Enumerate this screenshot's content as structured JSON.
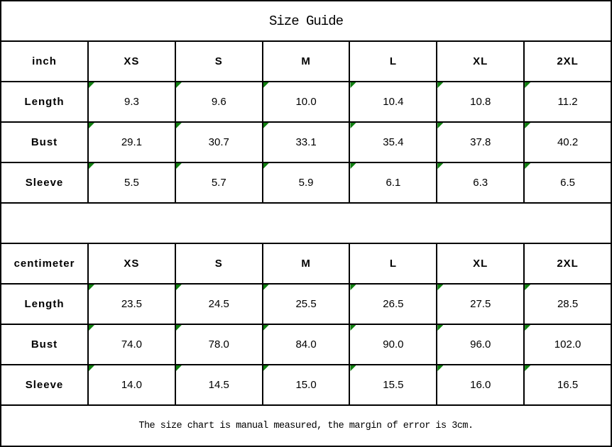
{
  "title": "Size Guide",
  "footer_note": "The size chart is manual measured, the margin of error is 3cm.",
  "colors": {
    "border": "#000000",
    "text": "#000000",
    "background": "#ffffff",
    "flag_green": "#108010"
  },
  "size_tables": [
    {
      "unit_label": "inch",
      "size_headers": [
        "XS",
        "S",
        "M",
        "L",
        "XL",
        "2XL"
      ],
      "rows": [
        {
          "label": "Length",
          "values": [
            "9.3",
            "9.6",
            "10.0",
            "10.4",
            "10.8",
            "11.2"
          ]
        },
        {
          "label": "Bust",
          "values": [
            "29.1",
            "30.7",
            "33.1",
            "35.4",
            "37.8",
            "40.2"
          ]
        },
        {
          "label": "Sleeve",
          "values": [
            "5.5",
            "5.7",
            "5.9",
            "6.1",
            "6.3",
            "6.5"
          ]
        }
      ]
    },
    {
      "unit_label": "centimeter",
      "size_headers": [
        "XS",
        "S",
        "M",
        "L",
        "XL",
        "2XL"
      ],
      "rows": [
        {
          "label": "Length",
          "values": [
            "23.5",
            "24.5",
            "25.5",
            "26.5",
            "27.5",
            "28.5"
          ]
        },
        {
          "label": "Bust",
          "values": [
            "74.0",
            "78.0",
            "84.0",
            "90.0",
            "96.0",
            "102.0"
          ]
        },
        {
          "label": "Sleeve",
          "values": [
            "14.0",
            "14.5",
            "15.0",
            "15.5",
            "16.0",
            "16.5"
          ]
        }
      ]
    }
  ],
  "chart_data": [
    {
      "type": "table",
      "title": "Size Guide",
      "unit": "inch",
      "columns": [
        "inch",
        "XS",
        "S",
        "M",
        "L",
        "XL",
        "2XL"
      ],
      "rows": [
        [
          "Length",
          9.3,
          9.6,
          10.0,
          10.4,
          10.8,
          11.2
        ],
        [
          "Bust",
          29.1,
          30.7,
          33.1,
          35.4,
          37.8,
          40.2
        ],
        [
          "Sleeve",
          5.5,
          5.7,
          5.9,
          6.1,
          6.3,
          6.5
        ]
      ]
    },
    {
      "type": "table",
      "title": "Size Guide",
      "unit": "centimeter",
      "columns": [
        "centimeter",
        "XS",
        "S",
        "M",
        "L",
        "XL",
        "2XL"
      ],
      "rows": [
        [
          "Length",
          23.5,
          24.5,
          25.5,
          26.5,
          27.5,
          28.5
        ],
        [
          "Bust",
          74.0,
          78.0,
          84.0,
          90.0,
          96.0,
          102.0
        ],
        [
          "Sleeve",
          14.0,
          14.5,
          15.0,
          15.5,
          16.0,
          16.5
        ]
      ],
      "note": "The size chart is manual measured, the margin of error is 3cm."
    }
  ]
}
